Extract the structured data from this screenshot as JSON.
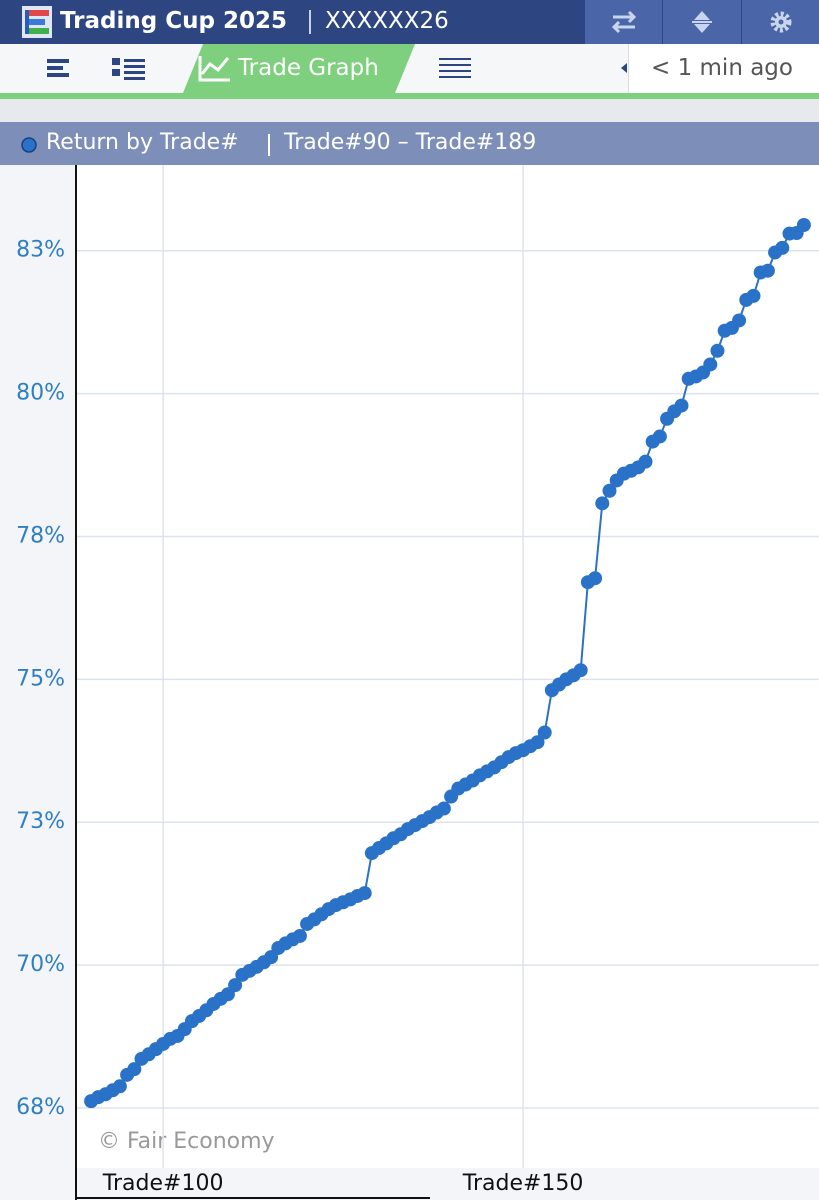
{
  "header": {
    "title": "Trading Cup 2025",
    "account": "XXXXXX26"
  },
  "tabs": {
    "active": "Trade Graph",
    "updated": "< 1 min ago"
  },
  "chart_data": {
    "type": "line",
    "title": "Return by Trade#",
    "subtitle": "Trade#90 – Trade#189",
    "watermark": "© Fair Economy",
    "x": [
      90,
      91,
      92,
      93,
      94,
      95,
      96,
      97,
      98,
      99,
      100,
      101,
      102,
      103,
      104,
      105,
      106,
      107,
      108,
      109,
      110,
      111,
      112,
      113,
      114,
      115,
      116,
      117,
      118,
      119,
      120,
      121,
      122,
      123,
      124,
      125,
      126,
      127,
      128,
      129,
      130,
      131,
      132,
      133,
      134,
      135,
      136,
      137,
      138,
      139,
      140,
      141,
      142,
      143,
      144,
      145,
      146,
      147,
      148,
      149,
      150,
      151,
      152,
      153,
      154,
      155,
      156,
      157,
      158,
      159,
      160,
      161,
      162,
      163,
      164,
      165,
      166,
      167,
      168,
      169,
      170,
      171,
      172,
      173,
      174,
      175,
      176,
      177,
      178,
      179,
      180,
      181,
      182,
      183,
      184,
      185,
      186,
      187,
      188,
      189
    ],
    "series": [
      {
        "name": "Return by Trade#",
        "color": "#2a72c8",
        "values": [
          67.62,
          67.69,
          67.74,
          67.81,
          67.88,
          68.08,
          68.18,
          68.36,
          68.44,
          68.53,
          68.62,
          68.71,
          68.76,
          68.88,
          69.02,
          69.11,
          69.21,
          69.32,
          69.41,
          69.49,
          69.65,
          69.83,
          69.9,
          69.97,
          70.05,
          70.14,
          70.3,
          70.38,
          70.45,
          70.51,
          70.72,
          70.8,
          70.89,
          70.98,
          71.05,
          71.1,
          71.15,
          71.21,
          71.26,
          71.96,
          72.05,
          72.13,
          72.22,
          72.29,
          72.38,
          72.45,
          72.52,
          72.59,
          72.67,
          72.74,
          72.95,
          73.09,
          73.16,
          73.23,
          73.32,
          73.39,
          73.46,
          73.55,
          73.64,
          73.71,
          73.76,
          73.83,
          73.9,
          74.07,
          74.81,
          74.91,
          75.0,
          75.07,
          75.16,
          76.7,
          76.77,
          78.08,
          78.3,
          78.48,
          78.6,
          78.65,
          78.71,
          78.81,
          79.16,
          79.25,
          79.56,
          79.69,
          79.79,
          80.26,
          80.3,
          80.37,
          80.51,
          80.75,
          81.1,
          81.15,
          81.28,
          81.64,
          81.71,
          82.12,
          82.15,
          82.47,
          82.55,
          82.8,
          82.81,
          82.95
        ]
      }
    ],
    "xlim": [
      87.9,
      191.1
    ],
    "xticks": [
      {
        "value": 100,
        "label": "Trade#100"
      },
      {
        "value": 150,
        "label": "Trade#150"
      }
    ],
    "ylim": [
      66.45,
      84
    ],
    "yticks": [
      {
        "value": 67.5,
        "label": "68%"
      },
      {
        "value": 70,
        "label": "70%"
      },
      {
        "value": 72.5,
        "label": "73%"
      },
      {
        "value": 75,
        "label": "75%"
      },
      {
        "value": 77.5,
        "label": "78%"
      },
      {
        "value": 80,
        "label": "80%"
      },
      {
        "value": 82.5,
        "label": "83%"
      }
    ],
    "grid": true
  }
}
